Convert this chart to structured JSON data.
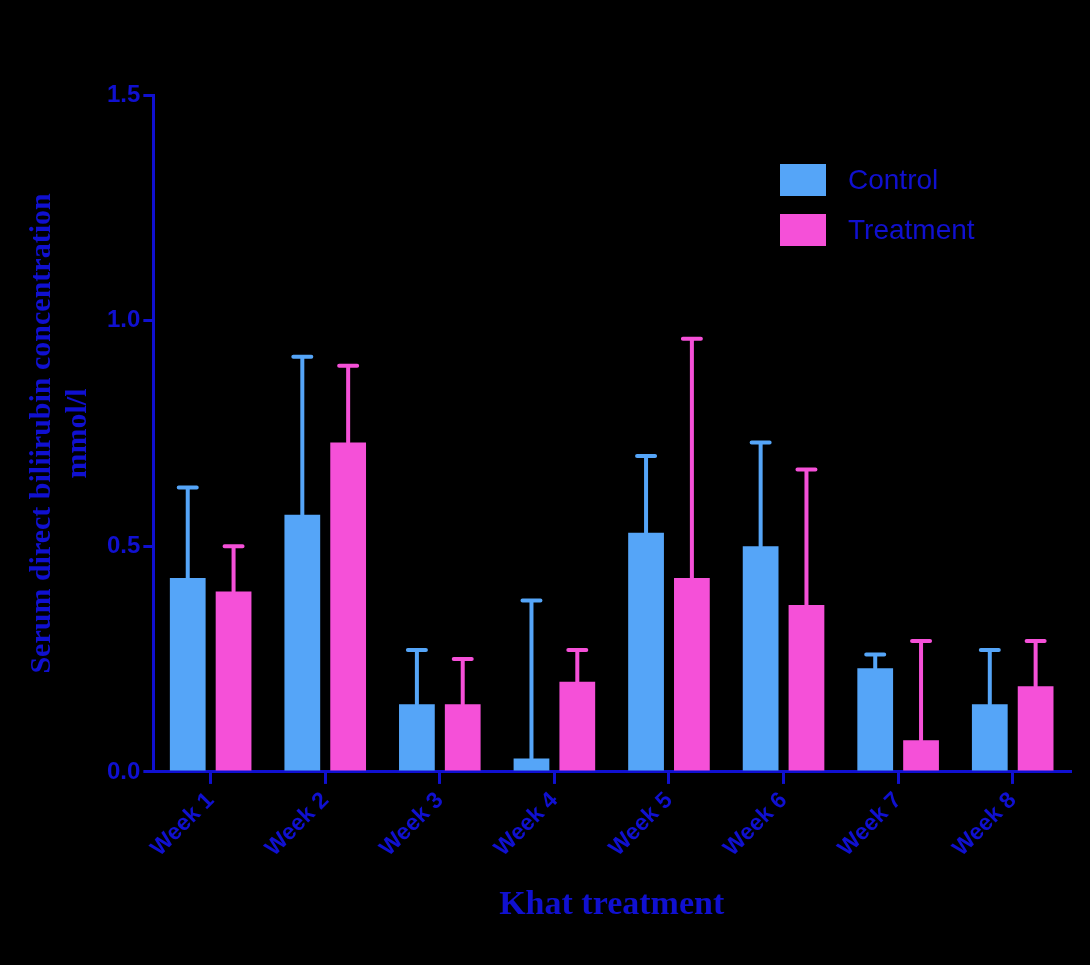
{
  "chart_data": {
    "type": "bar",
    "xlabel": "Khat treatment",
    "ylabel": "Serum direct biliirubin concentration\nmmol/l",
    "categories": [
      "Week 1",
      "Week 2",
      "Week 3",
      "Week 4",
      "Week 5",
      "Week 6",
      "Week 7",
      "Week 8"
    ],
    "series": [
      {
        "name": "Control",
        "color": "#55a5f8",
        "values": [
          0.43,
          0.57,
          0.15,
          0.03,
          0.53,
          0.5,
          0.23,
          0.15
        ],
        "errors": [
          [
            0.43,
            0.63
          ],
          [
            0.57,
            0.92
          ],
          [
            0.15,
            0.27
          ],
          [
            0.03,
            0.38
          ],
          [
            0.53,
            0.7
          ],
          [
            0.5,
            0.73
          ],
          [
            0.23,
            0.26
          ],
          [
            0.15,
            0.27
          ]
        ]
      },
      {
        "name": "Treatment",
        "color": "#f550d8",
        "values": [
          0.4,
          0.73,
          0.15,
          0.2,
          0.43,
          0.37,
          0.07,
          0.19
        ],
        "errors": [
          [
            0.4,
            0.5
          ],
          [
            0.73,
            0.9
          ],
          [
            0.15,
            0.25
          ],
          [
            0.2,
            0.27
          ],
          [
            0.43,
            0.96
          ],
          [
            0.37,
            0.67
          ],
          [
            0.07,
            0.29
          ],
          [
            0.19,
            0.29
          ]
        ]
      }
    ],
    "ylim": [
      0,
      1.5
    ],
    "yticks": [
      {
        "value": 0,
        "label": "0.0"
      },
      {
        "value": 0.5,
        "label": "0.5"
      },
      {
        "value": 1,
        "label": "1.0"
      },
      {
        "value": 1.5,
        "label": "1.5"
      }
    ],
    "grid": false,
    "legend": "top right"
  }
}
